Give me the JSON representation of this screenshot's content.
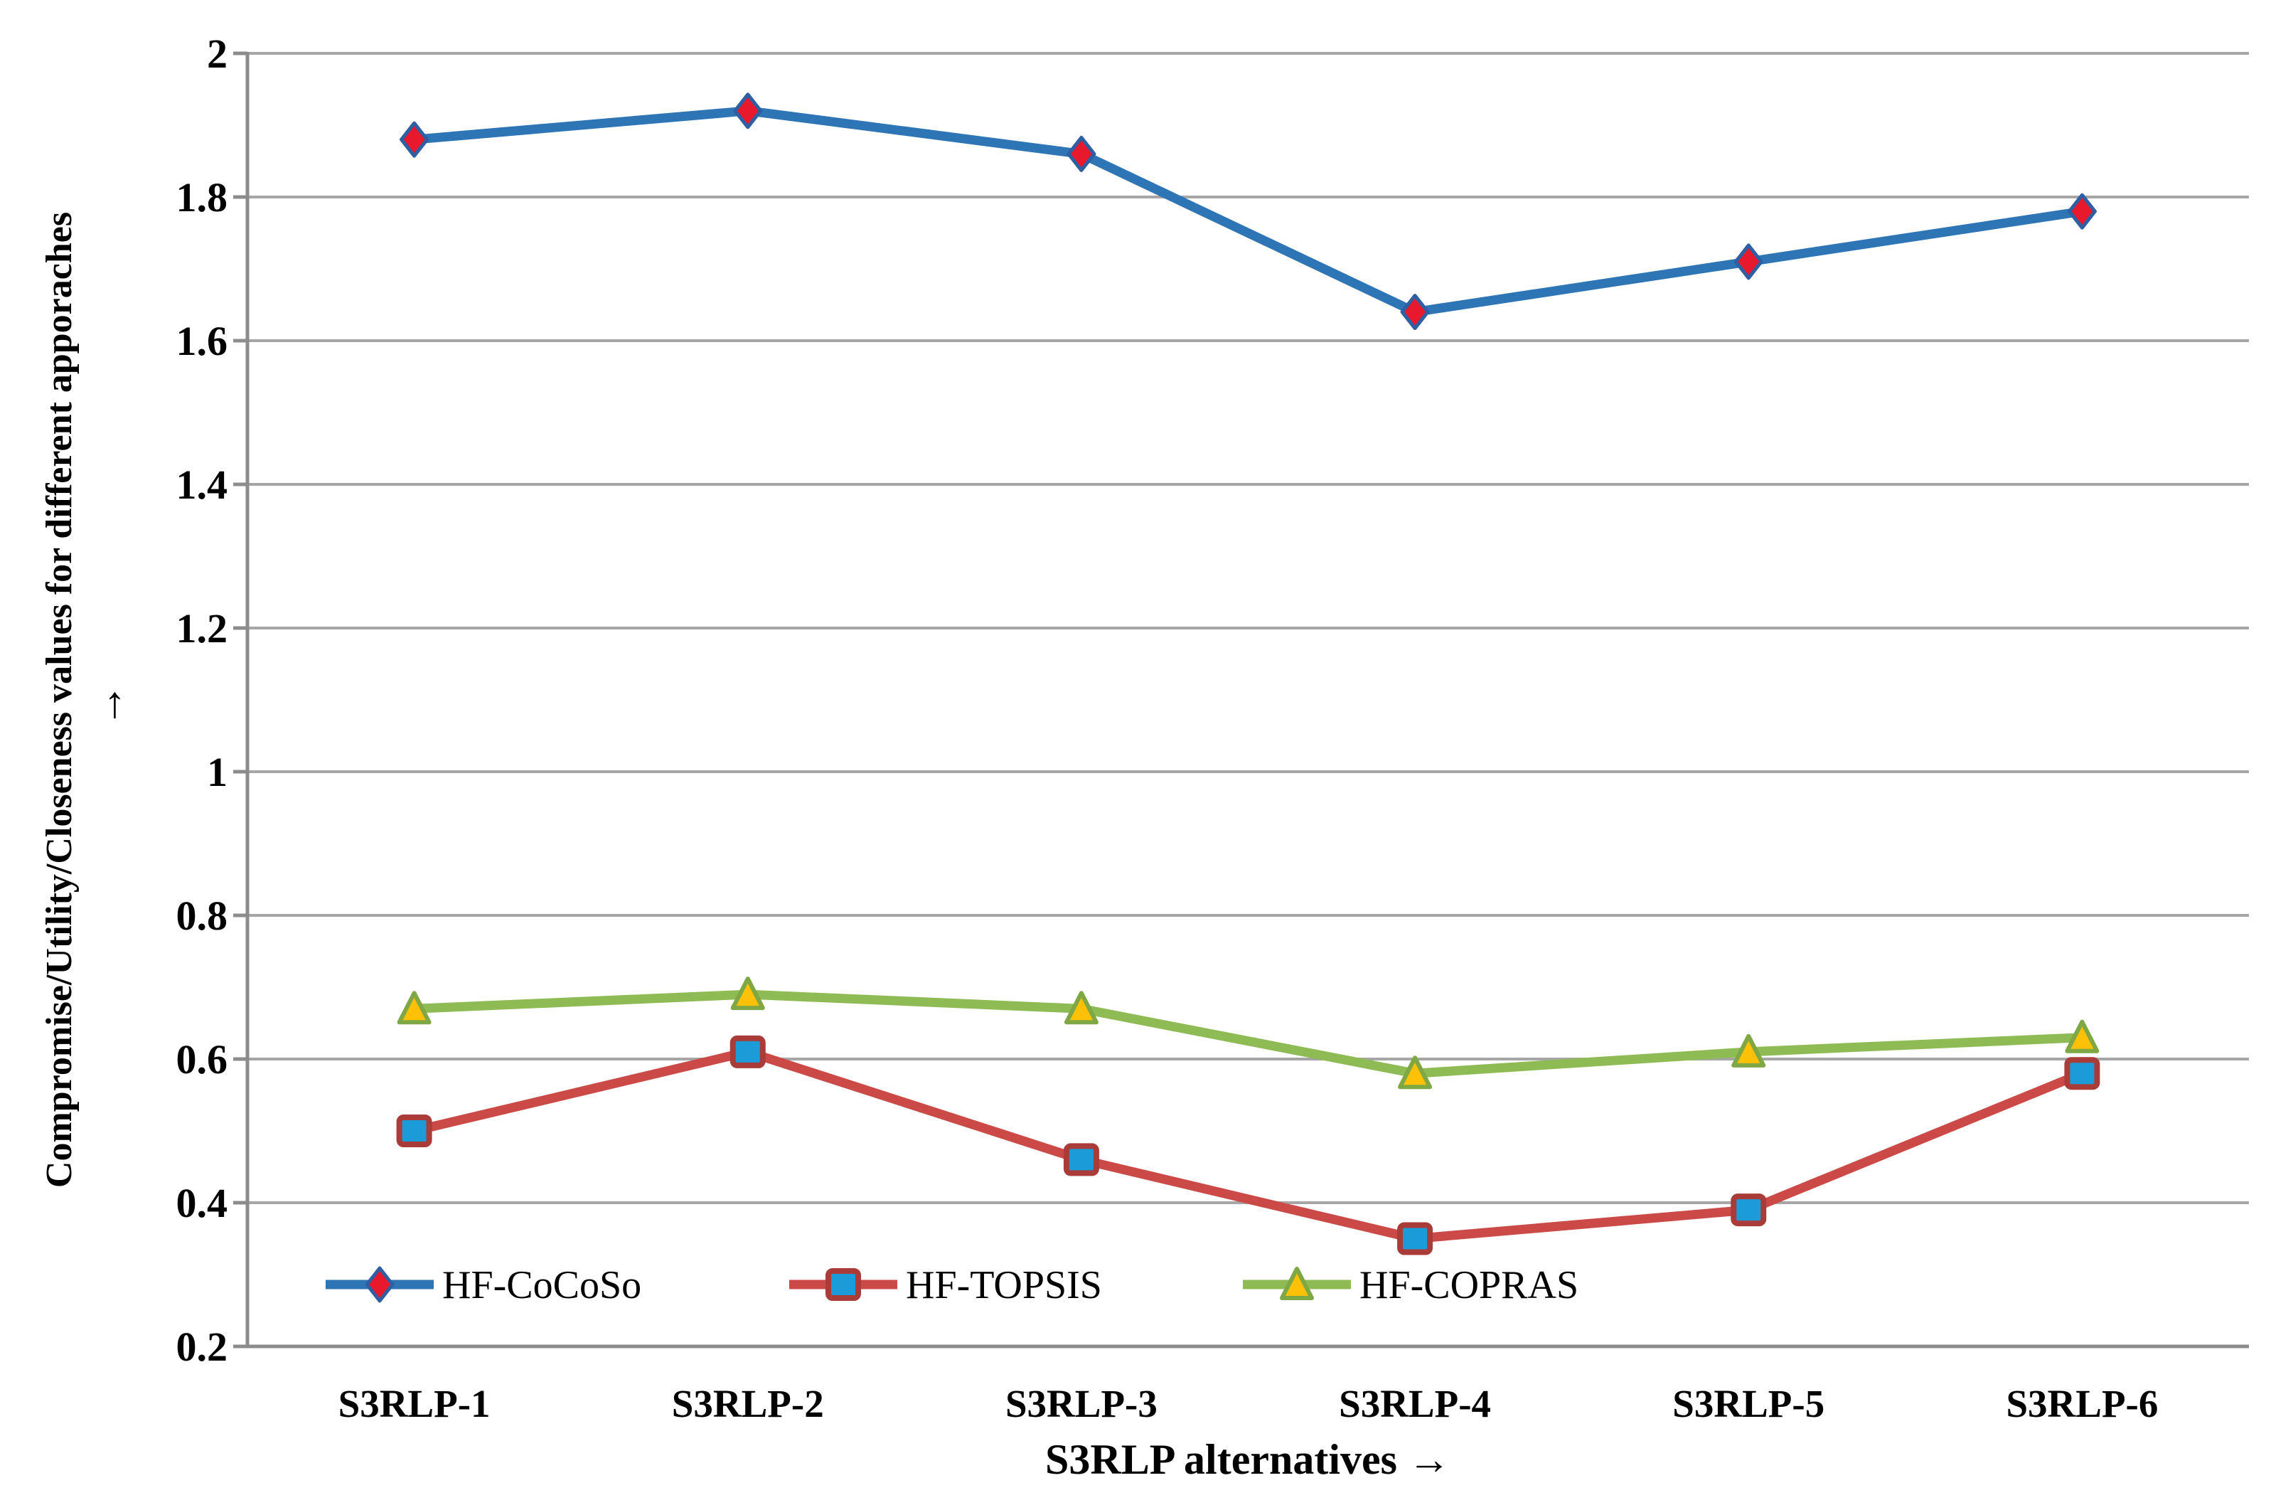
{
  "figure": {
    "background_color": "#ffffff",
    "gridline_color": "#a6a6a6",
    "axis_line_color": "#8c8c8c"
  },
  "y_axis": {
    "title": "Compromise/Utility/Closeness values for different apporaches",
    "title_arrow": "↑",
    "tick_labels": [
      "2",
      "1.8",
      "1.6",
      "1.4",
      "1.2",
      "1",
      "0.8",
      "0.6",
      "0.4",
      "0.2"
    ],
    "min": 0.2,
    "max": 2,
    "step": 0.2
  },
  "x_axis": {
    "title": "S3RLP alternatives →",
    "categories": [
      "S3RLP-1",
      "S3RLP-2",
      "S3RLP-3",
      "S3RLP-4",
      "S3RLP-5",
      "S3RLP-6"
    ]
  },
  "legend": {
    "position": "bottom-inside",
    "items": [
      {
        "label": "HF-CoCoSo",
        "line_color": "#2e75b6",
        "marker": "diamond",
        "marker_fill": "#e8192c",
        "marker_stroke": "#2e5fa3"
      },
      {
        "label": "HF-TOPSIS",
        "line_color": "#cb4a47",
        "marker": "square",
        "marker_fill": "#1b9cd8",
        "marker_stroke": "#a93b38"
      },
      {
        "label": "HF-COPRAS",
        "line_color": "#8fbb55",
        "marker": "triangle",
        "marker_fill": "#ffc108",
        "marker_stroke": "#7fa845"
      }
    ]
  },
  "chart_data": {
    "type": "line",
    "categories": [
      "S3RLP-1",
      "S3RLP-2",
      "S3RLP-3",
      "S3RLP-4",
      "S3RLP-5",
      "S3RLP-6"
    ],
    "series": [
      {
        "name": "HF-CoCoSo",
        "values": [
          1.88,
          1.92,
          1.86,
          1.64,
          1.71,
          1.78
        ],
        "line_color": "#2e75b6",
        "marker": "diamond",
        "marker_fill": "#e8192c",
        "marker_stroke": "#2e5fa3"
      },
      {
        "name": "HF-TOPSIS",
        "values": [
          0.5,
          0.61,
          0.46,
          0.35,
          0.39,
          0.58
        ],
        "line_color": "#cb4a47",
        "marker": "square",
        "marker_fill": "#1b9cd8",
        "marker_stroke": "#a93b38"
      },
      {
        "name": "HF-COPRAS",
        "values": [
          0.67,
          0.69,
          0.67,
          0.58,
          0.61,
          0.63
        ],
        "line_color": "#8fbb55",
        "marker": "triangle",
        "marker_fill": "#ffc108",
        "marker_stroke": "#7fa845"
      }
    ],
    "title": "",
    "xlabel": "S3RLP alternatives →",
    "ylabel": "Compromise/Utility/Closeness values for different apporaches ↑",
    "ylim": [
      0.2,
      2
    ],
    "ytick_step": 0.2,
    "grid": "horizontal",
    "legend_position": "bottom-inside"
  }
}
